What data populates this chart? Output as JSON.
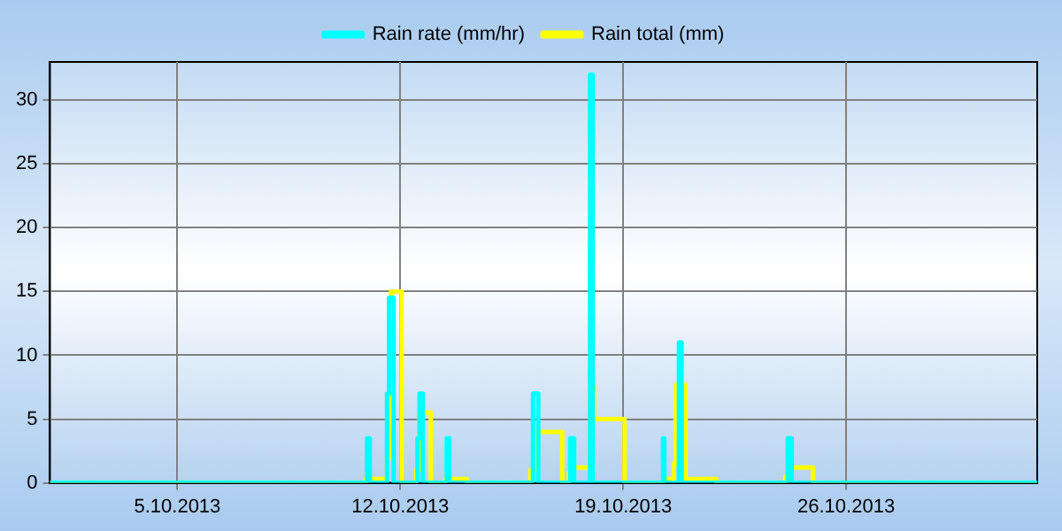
{
  "chart_data": {
    "type": "step",
    "xlim": [
      "2013-10-01",
      "2013-11-01"
    ],
    "ylim": [
      0,
      33
    ],
    "xticks": [
      {
        "value": "2013-10-05",
        "label": "5.10.2013"
      },
      {
        "value": "2013-10-12",
        "label": "12.10.2013"
      },
      {
        "value": "2013-10-19",
        "label": "19.10.2013"
      },
      {
        "value": "2013-10-26",
        "label": "26.10.2013"
      }
    ],
    "yticks": [
      0,
      5,
      10,
      15,
      20,
      25,
      30
    ],
    "grid": true,
    "legend": "top",
    "marker": "none",
    "line_style": "solid",
    "series": [
      {
        "name": "Rain rate (mm/hr)",
        "color": "#00ffff",
        "x": [
          "2013-10-01",
          "2013-10-10T23:00",
          "2013-10-11T01:00",
          "2013-10-11T14:00",
          "2013-10-11T15:30",
          "2013-10-11T19:00",
          "2013-10-12T13:00",
          "2013-10-12T14:30",
          "2013-10-12T17:00",
          "2013-10-13T11:00",
          "2013-10-13T13:00",
          "2013-10-16T04:00",
          "2013-10-16T08:00",
          "2013-10-17T08:00",
          "2013-10-17T11:00",
          "2013-10-17T23:00",
          "2013-10-18T01:00",
          "2013-10-20T06:00",
          "2013-10-20T07:00",
          "2013-10-20T18:00",
          "2013-10-20T20:00",
          "2013-10-24T04:00",
          "2013-10-24T07:00",
          "2013-11-01"
        ],
        "values": [
          0,
          3.5,
          0,
          7,
          14.5,
          0,
          3.5,
          7,
          0,
          3.5,
          0,
          7,
          0,
          3.5,
          0,
          32,
          0,
          3.5,
          0,
          11,
          0,
          3.5,
          0,
          0
        ]
      },
      {
        "name": "Rain total (mm)",
        "color": "#ffff00",
        "x": [
          "2013-10-01",
          "2013-10-10T22:00",
          "2013-10-11T14:00",
          "2013-10-11T17:00",
          "2013-10-12T01:00",
          "2013-10-12T12:00",
          "2013-10-12T14:30",
          "2013-10-12T23:00",
          "2013-10-13T10:00",
          "2013-10-14T02:00",
          "2013-10-16T02:00",
          "2013-10-16T07:00",
          "2013-10-17T02:00",
          "2013-10-17T07:00",
          "2013-10-17T10:00",
          "2013-10-17T23:00",
          "2013-10-18T02:00",
          "2013-10-19T01:00",
          "2013-10-20T06:00",
          "2013-10-20T14:00",
          "2013-10-20T15:30",
          "2013-10-20T23:00",
          "2013-10-21T22:00",
          "2013-10-24T02:00",
          "2013-10-24T06:00",
          "2013-10-24T23:00",
          "2013-11-01"
        ],
        "values": [
          0,
          0.3,
          2,
          15,
          0,
          1,
          5.5,
          0,
          0.3,
          0,
          1,
          4,
          0,
          0.8,
          1.2,
          7.5,
          5,
          0,
          0.3,
          1.5,
          7.7,
          0.3,
          0,
          0.5,
          1.2,
          0,
          0
        ]
      }
    ]
  }
}
